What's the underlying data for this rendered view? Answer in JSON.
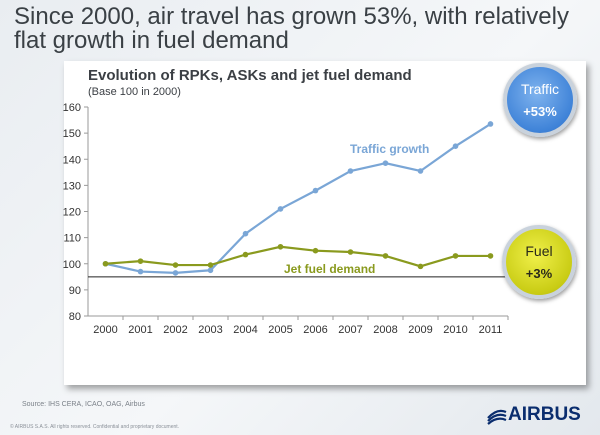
{
  "headline": "Since 2000, air travel has grown 53%, with relatively flat growth in fuel demand",
  "chart_data": {
    "type": "line",
    "title": "Evolution of RPKs, ASKs and jet fuel demand",
    "subtitle": "(Base 100 in 2000)",
    "xlabel": "",
    "ylabel": "",
    "categories": [
      "2000",
      "2001",
      "2002",
      "2003",
      "2004",
      "2005",
      "2006",
      "2007",
      "2008",
      "2009",
      "2010",
      "2011"
    ],
    "ylim": [
      80,
      160
    ],
    "yticks": [
      80,
      90,
      100,
      110,
      120,
      130,
      140,
      150,
      160
    ],
    "reference_line": 95,
    "series": [
      {
        "name": "Traffic growth",
        "color": "#7aa6d6",
        "values": [
          100,
          97,
          96.5,
          97.5,
          111.5,
          121,
          128,
          135.5,
          138.5,
          135.5,
          145,
          153.5
        ]
      },
      {
        "name": "Jet fuel demand",
        "color": "#8a9a1e",
        "values": [
          100,
          101,
          99.5,
          99.5,
          103.5,
          106.5,
          105,
          104.5,
          103,
          99,
          103,
          103
        ]
      }
    ]
  },
  "badges": {
    "traffic": {
      "label": "Traffic",
      "value": "+53%"
    },
    "fuel": {
      "label": "Fuel",
      "value": "+3%"
    }
  },
  "footer": {
    "source": "Source: IHS CERA, ICAO, OAG, Airbus",
    "copyright": "© AIRBUS S.A.S. All rights reserved. Confidential and proprietary document.",
    "logo_text": "AIRBUS"
  }
}
